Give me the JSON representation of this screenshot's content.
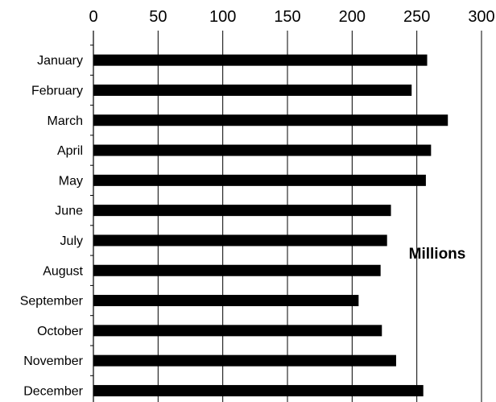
{
  "chart_data": {
    "type": "bar",
    "orientation": "horizontal",
    "categories": [
      "January",
      "February",
      "March",
      "April",
      "May",
      "June",
      "July",
      "August",
      "September",
      "October",
      "November",
      "December"
    ],
    "values": [
      258,
      246,
      274,
      261,
      257,
      230,
      227,
      222,
      205,
      223,
      234,
      255
    ],
    "xlim": [
      0,
      300
    ],
    "xticks": [
      0,
      50,
      100,
      150,
      200,
      250,
      300
    ],
    "x_axis_position": "top",
    "unit_label": "Millions",
    "grid": "vertical",
    "bar_color": "#000000"
  }
}
